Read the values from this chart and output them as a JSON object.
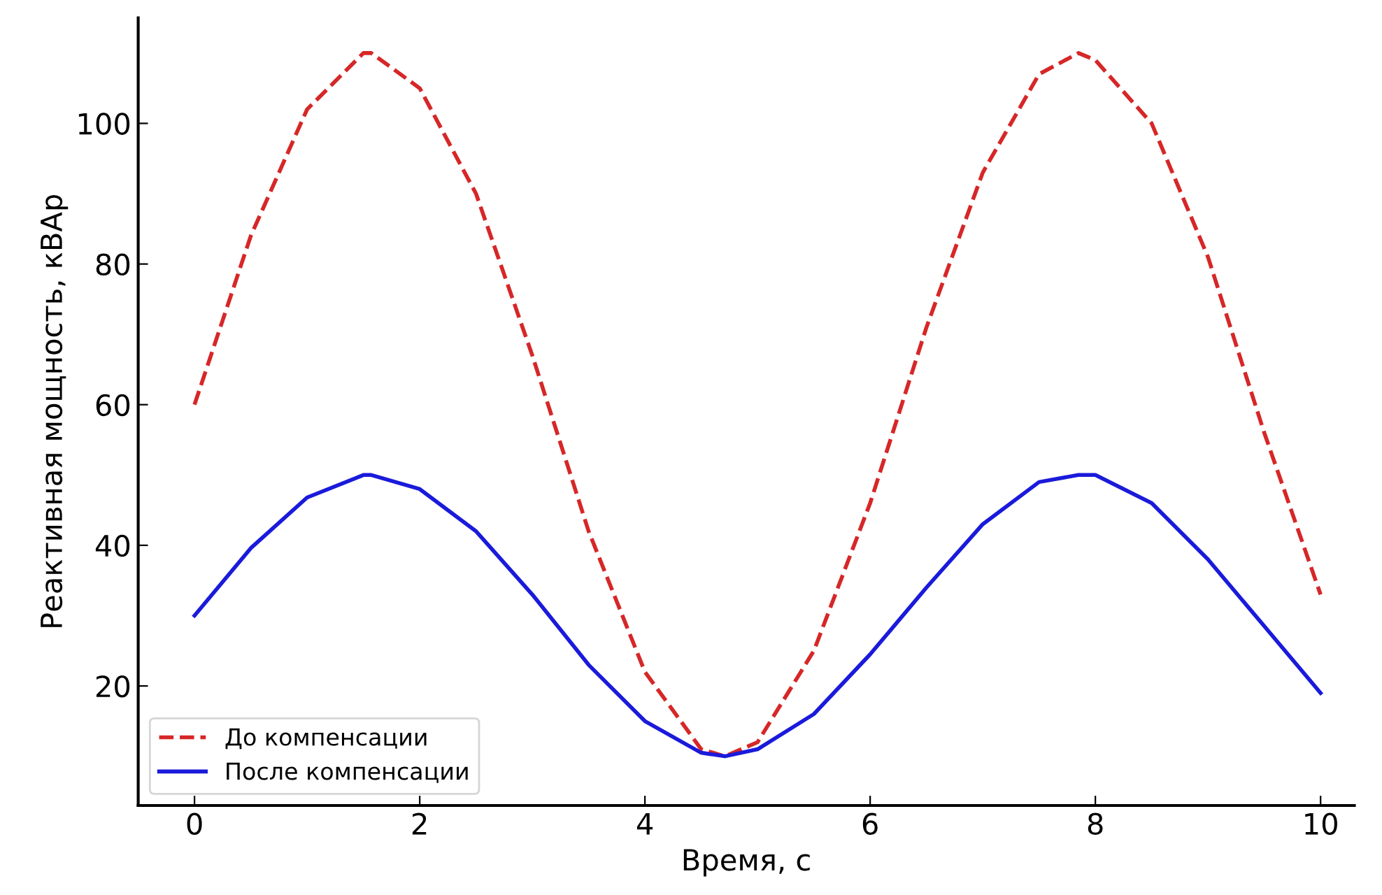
{
  "chart_data": {
    "type": "line",
    "xlabel": "Время, с",
    "ylabel": "Реактивная мощность, кВАр",
    "xlim": [
      -0.5,
      10.3
    ],
    "ylim": [
      3,
      115
    ],
    "xticks": [
      0,
      2,
      4,
      6,
      8,
      10
    ],
    "yticks": [
      20,
      40,
      60,
      80,
      100
    ],
    "grid": false,
    "legend": "bottom left",
    "series": [
      {
        "name": "До компенсации",
        "color": "#d62728",
        "line_style": "dashed",
        "x": [
          0,
          0.5,
          1,
          1.5,
          1.57,
          2,
          2.5,
          3,
          3.5,
          4,
          4.5,
          4.71,
          5,
          5.5,
          6,
          6.5,
          7,
          7.5,
          7.85,
          8,
          8.5,
          9,
          9.5,
          10
        ],
        "values": [
          60,
          84,
          102,
          110,
          110,
          105,
          90,
          67,
          42,
          22,
          11,
          10,
          12,
          25,
          46,
          71,
          93,
          107,
          110,
          109,
          100,
          81,
          56,
          33
        ]
      },
      {
        "name": "После компенсации",
        "color": "#1a1adb",
        "line_style": "solid",
        "x": [
          0,
          0.5,
          1,
          1.5,
          1.57,
          2,
          2.5,
          3,
          3.5,
          4,
          4.5,
          4.71,
          5,
          5.5,
          6,
          6.5,
          7,
          7.5,
          7.85,
          8,
          8.5,
          9,
          9.5,
          10
        ],
        "values": [
          30,
          39.6,
          46.8,
          50,
          50,
          48,
          42,
          33,
          23,
          15,
          10.5,
          10,
          11,
          16,
          24.5,
          34,
          43,
          49,
          50,
          50,
          46,
          38,
          28.5,
          19
        ]
      }
    ]
  }
}
